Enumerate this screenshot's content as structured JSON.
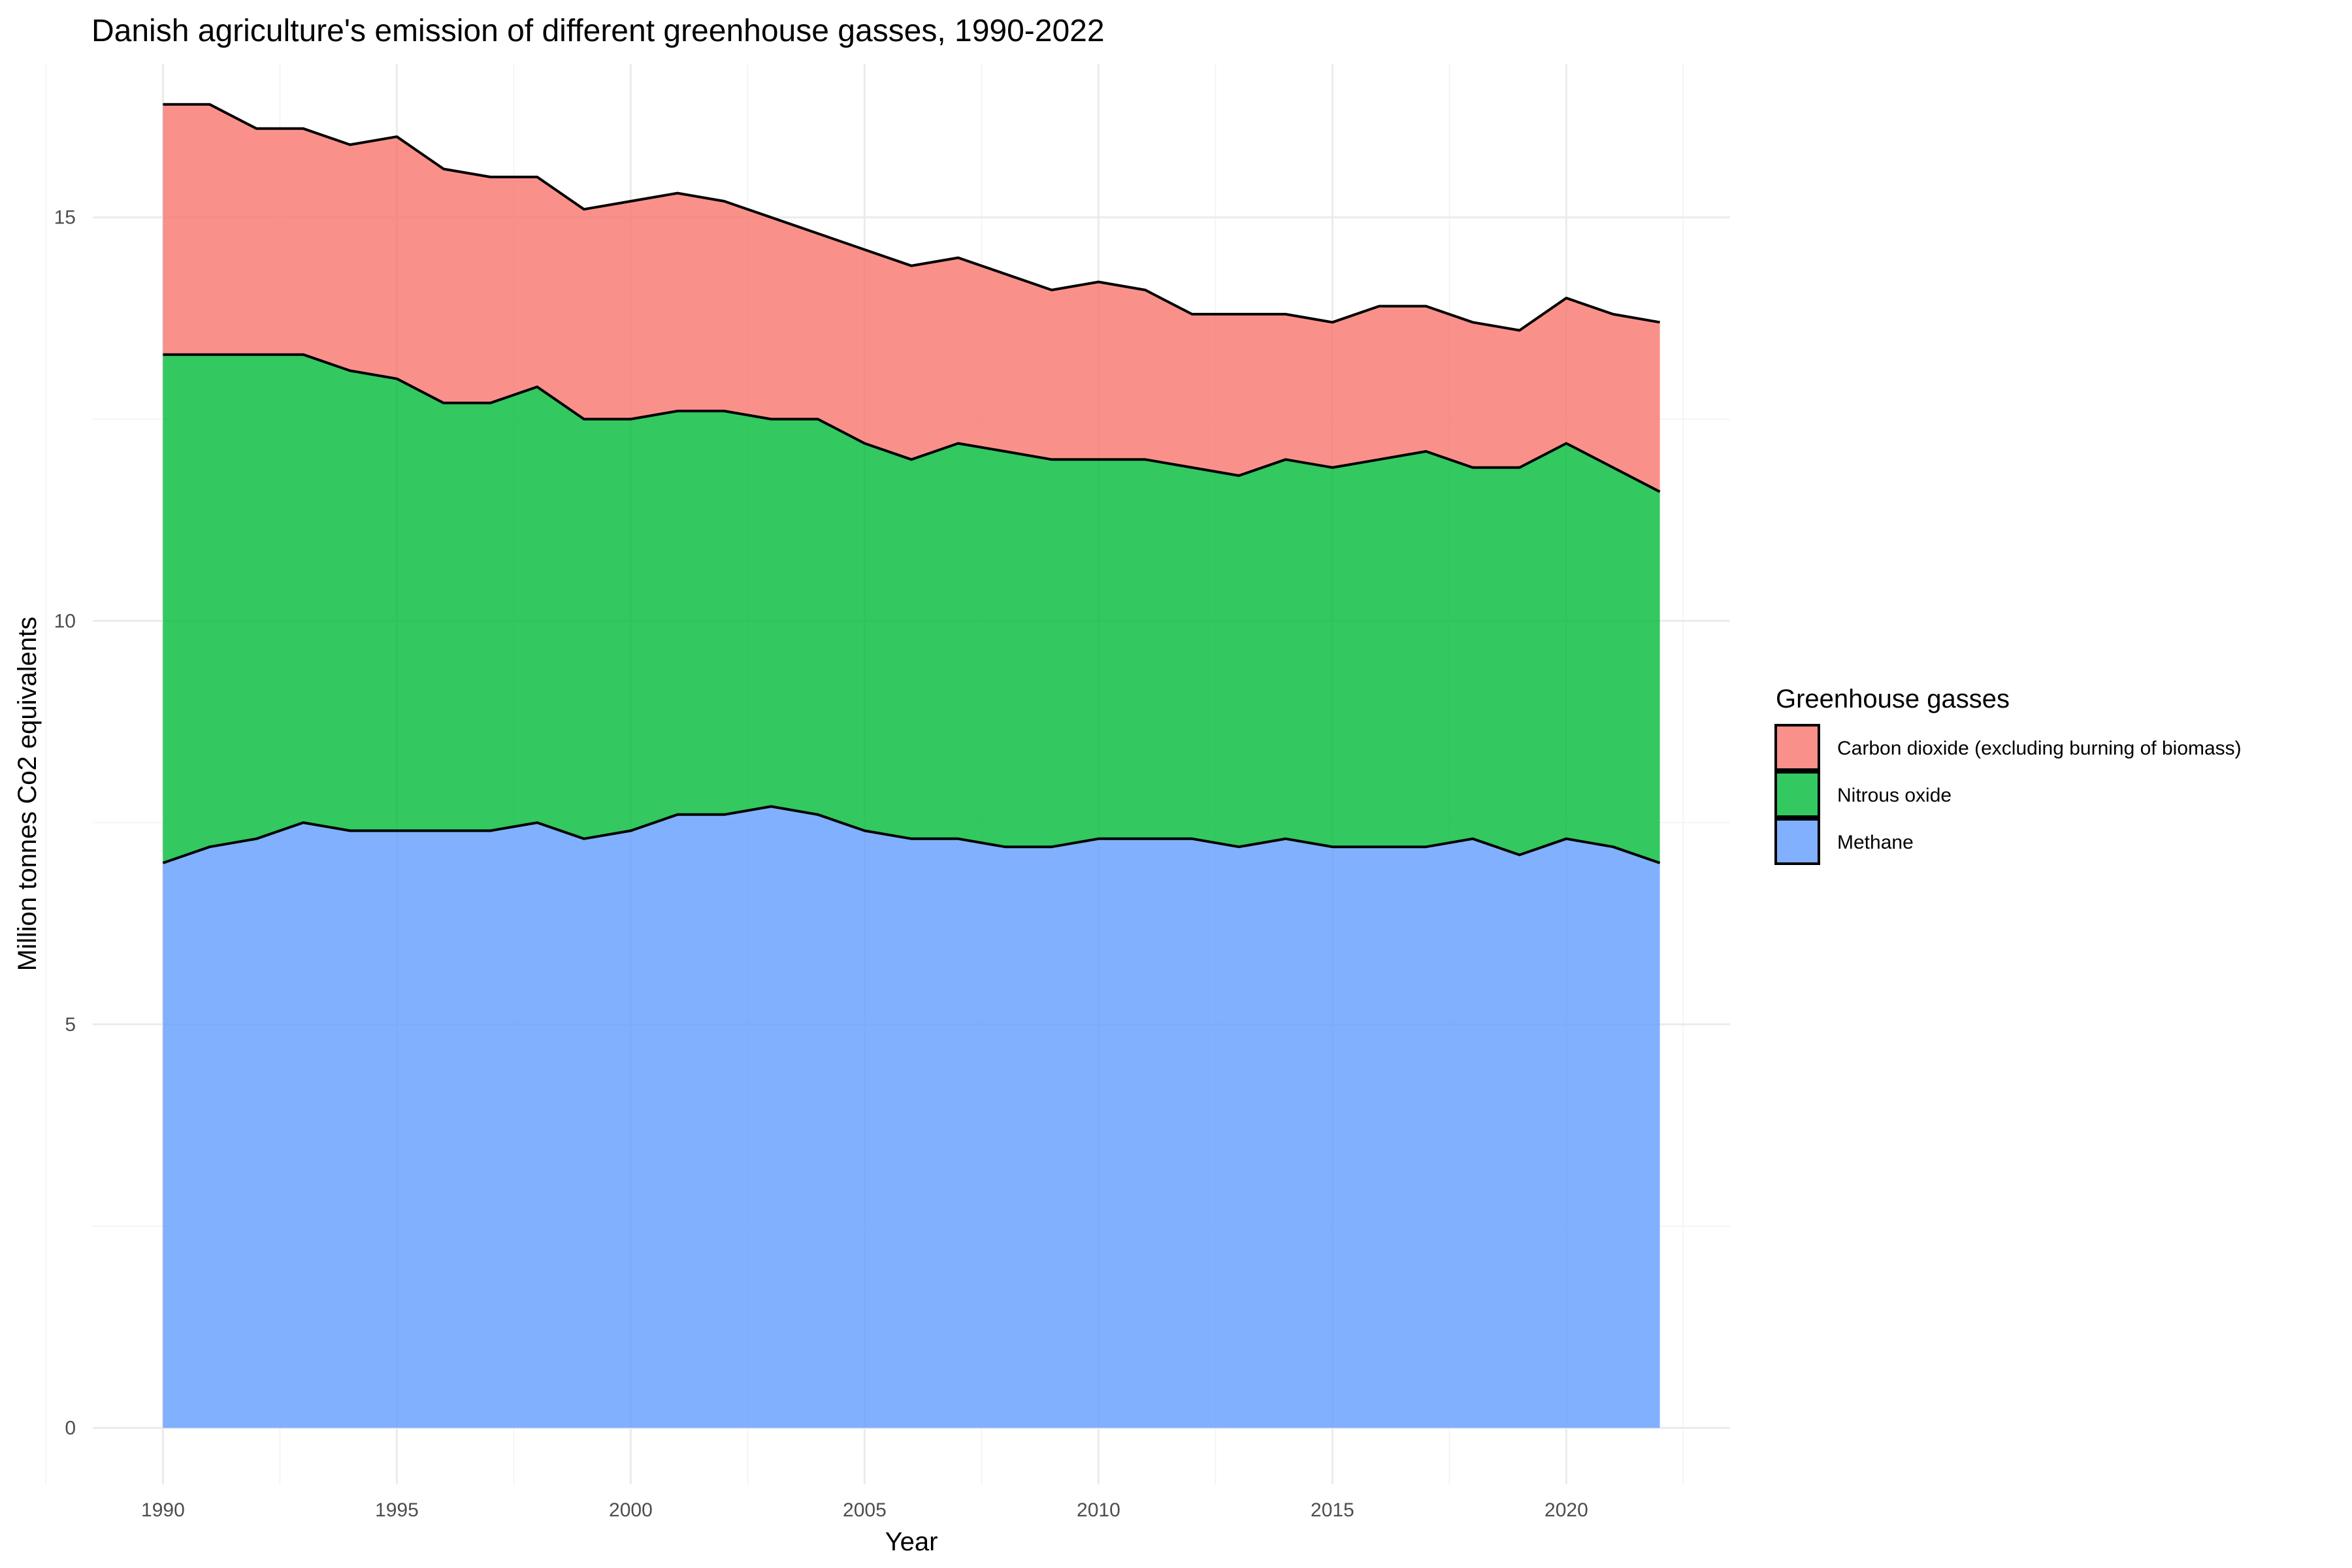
{
  "chart_data": {
    "type": "area",
    "stacked": true,
    "title": "Danish agriculture's emission of different greenhouse gasses, 1990-2022",
    "xlabel": "Year",
    "ylabel": "Million tonnes Co2 equivalents",
    "xlim": [
      1988.5,
      2023.5
    ],
    "ylim": [
      -0.7,
      16.9
    ],
    "x_ticks": [
      1990,
      1995,
      2000,
      2005,
      2010,
      2015,
      2020
    ],
    "x_tick_labels": [
      "1990",
      "1995",
      "2000",
      "2005",
      "2010",
      "2015",
      "2020"
    ],
    "y_ticks": [
      0,
      5,
      10,
      15
    ],
    "y_tick_labels": [
      "0",
      "5",
      "10",
      "15"
    ],
    "grid": true,
    "legend": {
      "title": "Greenhouse gasses",
      "position": "right"
    },
    "x": [
      1990,
      1991,
      1992,
      1993,
      1994,
      1995,
      1996,
      1997,
      1998,
      1999,
      2000,
      2001,
      2002,
      2003,
      2004,
      2005,
      2006,
      2007,
      2008,
      2009,
      2010,
      2011,
      2012,
      2013,
      2014,
      2015,
      2016,
      2017,
      2018,
      2019,
      2020,
      2021,
      2022
    ],
    "series": [
      {
        "name": "Methane",
        "color": "#619CFF",
        "values": [
          7.0,
          7.2,
          7.3,
          7.5,
          7.4,
          7.4,
          7.4,
          7.4,
          7.5,
          7.3,
          7.4,
          7.6,
          7.6,
          7.7,
          7.6,
          7.4,
          7.3,
          7.3,
          7.2,
          7.2,
          7.3,
          7.3,
          7.3,
          7.2,
          7.3,
          7.2,
          7.2,
          7.2,
          7.3,
          7.1,
          7.3,
          7.2,
          7.0
        ]
      },
      {
        "name": "Nitrous oxide",
        "color": "#00BA38",
        "values": [
          6.3,
          6.1,
          6.0,
          5.8,
          5.7,
          5.6,
          5.3,
          5.3,
          5.4,
          5.2,
          5.1,
          5.0,
          5.0,
          4.8,
          4.9,
          4.8,
          4.7,
          4.9,
          4.9,
          4.8,
          4.7,
          4.7,
          4.6,
          4.6,
          4.7,
          4.7,
          4.8,
          4.9,
          4.6,
          4.8,
          4.9,
          4.7,
          4.6
        ]
      },
      {
        "name": "Carbon dioxide (excluding burning of biomass)",
        "color": "#F8766D",
        "values": [
          3.1,
          3.1,
          2.8,
          2.8,
          2.8,
          3.0,
          2.9,
          2.8,
          2.6,
          2.6,
          2.7,
          2.7,
          2.6,
          2.5,
          2.3,
          2.4,
          2.4,
          2.3,
          2.2,
          2.1,
          2.2,
          2.1,
          1.9,
          2.0,
          1.8,
          1.8,
          1.9,
          1.8,
          1.8,
          1.7,
          1.8,
          1.9,
          2.1
        ]
      }
    ],
    "legend_order": [
      "Carbon dioxide (excluding burning of biomass)",
      "Nitrous oxide",
      "Methane"
    ]
  }
}
